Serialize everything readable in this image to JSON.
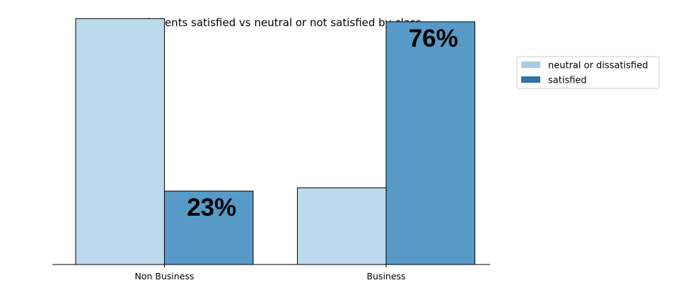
{
  "chart_data": {
    "type": "bar",
    "title": "Percentage of clients satisfied vs neutral or not satisfied by class",
    "xlabel": "",
    "ylabel": "",
    "categories": [
      "Non Business",
      "Business"
    ],
    "series": [
      {
        "name": "neutral or dissatisfied",
        "values": [
          0.77,
          0.24
        ],
        "color": "#bcdaec",
        "legend_color": "#a9cce3"
      },
      {
        "name": "satisfied",
        "values": [
          0.23,
          0.76
        ],
        "color": "#5799c7",
        "legend_color": "#2e72a6"
      }
    ],
    "data_labels": [
      {
        "series": 1,
        "category": 0,
        "text": "23%"
      },
      {
        "series": 1,
        "category": 1,
        "text": "76%"
      }
    ],
    "ylim": [
      0,
      0.795
    ],
    "grid": false,
    "legend_position": "top-right, outside plot"
  }
}
